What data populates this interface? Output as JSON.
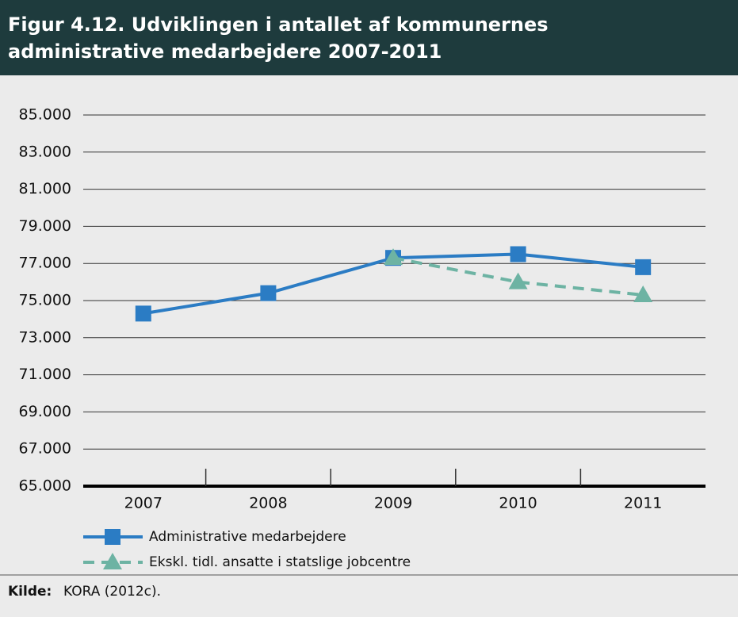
{
  "chart_data": {
    "type": "line",
    "title": "Figur 4.12. Udviklingen i antallet af kommunernes administrative medarbejdere 2007-2011",
    "categories": [
      "2007",
      "2008",
      "2009",
      "2010",
      "2011"
    ],
    "series": [
      {
        "name": "Administrative medarbejdere",
        "color": "#2b7cc4",
        "marker": "square",
        "style": "solid",
        "values": [
          74300,
          75400,
          77300,
          77500,
          76800
        ]
      },
      {
        "name": "Ekskl. tidl. ansatte i statslige jobcentre",
        "color": "#6db3a3",
        "marker": "triangle",
        "style": "dashed",
        "values": [
          null,
          null,
          77300,
          76000,
          75300
        ]
      }
    ],
    "ylim": [
      65000,
      85000
    ],
    "yticks": [
      {
        "value": 65000,
        "label": "65.000"
      },
      {
        "value": 67000,
        "label": "67.000"
      },
      {
        "value": 69000,
        "label": "69.000"
      },
      {
        "value": 71000,
        "label": "71.000"
      },
      {
        "value": 73000,
        "label": "73.000"
      },
      {
        "value": 75000,
        "label": "75.000"
      },
      {
        "value": 77000,
        "label": "77.000"
      },
      {
        "value": 79000,
        "label": "79.000"
      },
      {
        "value": 81000,
        "label": "81.000"
      },
      {
        "value": 83000,
        "label": "83.000"
      },
      {
        "value": 85000,
        "label": "85.000"
      }
    ],
    "grid": true,
    "source_label": "Kilde:",
    "source": "KORA (2012c)."
  }
}
